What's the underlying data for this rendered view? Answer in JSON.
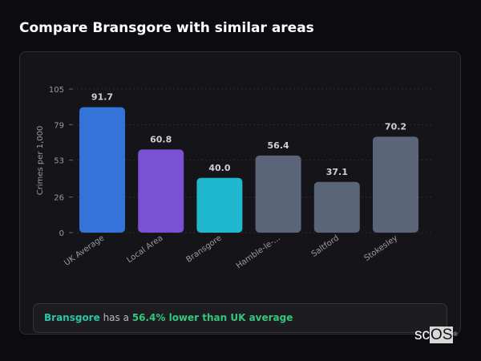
{
  "title": "Compare Bransgore with similar areas",
  "chart_data": {
    "type": "bar",
    "title": "",
    "ylabel": "Crimes per 1,000",
    "xlabel": "",
    "ylim": [
      0,
      105
    ],
    "yticks": [
      0,
      26,
      53,
      79,
      105
    ],
    "grid": true,
    "categories": [
      "UK Average",
      "Local Area",
      "Bransgore",
      "Hamble-le-...",
      "Saltford",
      "Stokesley"
    ],
    "values": [
      91.7,
      60.8,
      40.0,
      56.4,
      37.1,
      70.2
    ],
    "value_labels": [
      "91.7",
      "60.8",
      "40.0",
      "56.4",
      "37.1",
      "70.2"
    ],
    "colors": [
      "#3474d9",
      "#7b51d3",
      "#20b8cf",
      "#5a6579",
      "#5a6579",
      "#5a6579"
    ]
  },
  "summary": {
    "area": "Bransgore",
    "middle": " has a ",
    "comparison": "56.4% lower than UK average"
  },
  "logo": {
    "text_a": "sc",
    "text_b": "OS",
    "mark": "®"
  }
}
